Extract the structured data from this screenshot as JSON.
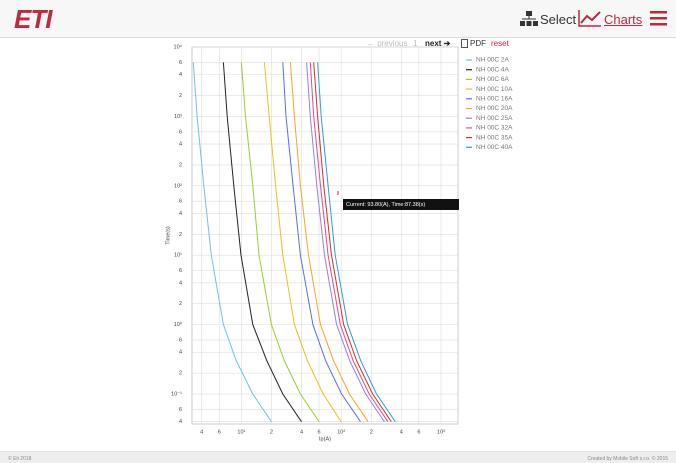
{
  "header": {
    "logo": "ETI",
    "nav": [
      "Select",
      "Charts"
    ]
  },
  "toolbar": {
    "previous": "← previous",
    "page": "1",
    "next": "next ➔",
    "pdf": "PDF",
    "reset": "reset"
  },
  "chart_data": {
    "type": "line",
    "xlabel": "Ip(A)",
    "ylabel": "Time(s)",
    "xlog": true,
    "ylog": true,
    "grid": true,
    "xlim": [
      3.2,
      1480
    ],
    "ylim": [
      0.037,
      10000
    ],
    "xticks": [
      4,
      6,
      {
        "value": 10,
        "label": "10¹"
      },
      {
        "value": 20,
        "label": "2"
      },
      {
        "value": 40,
        "label": "4"
      },
      {
        "value": 60,
        "label": "6"
      },
      {
        "value": 100,
        "label": "10²"
      },
      {
        "value": 200,
        "label": "2"
      },
      {
        "value": 400,
        "label": "4"
      },
      {
        "value": 600,
        "label": "6"
      },
      {
        "value": 1000,
        "label": "10³"
      }
    ],
    "yticks": [
      {
        "value": 10000,
        "label": "10⁴"
      },
      {
        "value": 6000,
        "label": "6"
      },
      {
        "value": 4000,
        "label": "4"
      },
      {
        "value": 2000,
        "label": "2"
      },
      {
        "value": 1000,
        "label": "10³"
      },
      {
        "value": 600,
        "label": "6"
      },
      {
        "value": 400,
        "label": "4"
      },
      {
        "value": 200,
        "label": "2"
      },
      {
        "value": 100,
        "label": "10²"
      },
      {
        "value": 60,
        "label": "6"
      },
      {
        "value": 40,
        "label": "4"
      },
      {
        "value": 20,
        "label": "2"
      },
      {
        "value": 10,
        "label": "10¹"
      },
      6,
      4,
      2,
      {
        "value": 1,
        "label": "10⁰"
      },
      {
        "value": 0.6,
        "label": "6"
      },
      {
        "value": 0.4,
        "label": "4"
      },
      {
        "value": 0.2,
        "label": "2"
      },
      {
        "value": 0.1,
        "label": "10⁻¹"
      },
      {
        "value": 0.06,
        "label": "6"
      },
      {
        "value": 0.04,
        "label": "4"
      }
    ],
    "series": [
      {
        "name": "NH 00C 2A",
        "color": "#6ec1e4",
        "x": [
          3.3,
          3.6,
          4.2,
          5,
          6.6,
          8.9,
          13,
          20
        ],
        "values": [
          6000,
          1000,
          100,
          10,
          1,
          0.3,
          0.1,
          0.04
        ]
      },
      {
        "name": "NH 00C 4A",
        "color": "#222222",
        "x": [
          6.6,
          7.2,
          8.4,
          9.9,
          13,
          18,
          26,
          40
        ],
        "values": [
          6000,
          1000,
          100,
          10,
          1,
          0.3,
          0.1,
          0.04
        ]
      },
      {
        "name": "NH 00C 6A",
        "color": "#9acd32",
        "x": [
          10,
          11,
          13,
          15,
          20,
          27,
          39,
          60
        ],
        "values": [
          6000,
          1000,
          100,
          10,
          1,
          0.3,
          0.1,
          0.04
        ]
      },
      {
        "name": "NH 00C 10A",
        "color": "#e8c21a",
        "x": [
          17,
          19,
          22,
          26,
          34,
          46,
          66,
          100
        ],
        "values": [
          6000,
          1000,
          100,
          10,
          1,
          0.3,
          0.1,
          0.04
        ]
      },
      {
        "name": "NH 00C 16A",
        "color": "#5b6ee1",
        "x": [
          26,
          28,
          33,
          39,
          52,
          70,
          101,
          156
        ],
        "values": [
          6000,
          1000,
          100,
          10,
          1,
          0.3,
          0.1,
          0.04
        ]
      },
      {
        "name": "NH 00C 20A",
        "color": "#f5a623",
        "x": [
          31,
          34,
          39,
          47,
          62,
          84,
          121,
          186
        ],
        "values": [
          6000,
          1000,
          100,
          10,
          1,
          0.3,
          0.1,
          0.04
        ]
      },
      {
        "name": "NH 00C 25A",
        "color": "#9b7fd4",
        "x": [
          45,
          49,
          57,
          68,
          90,
          122,
          176,
          270
        ],
        "values": [
          6000,
          1000,
          100,
          10,
          1,
          0.3,
          0.1,
          0.04
        ]
      },
      {
        "name": "NH 00C 32A",
        "color": "#e8488f",
        "x": [
          49,
          53,
          62,
          74,
          98,
          132,
          191,
          294
        ],
        "values": [
          6000,
          1000,
          100,
          10,
          1,
          0.3,
          0.1,
          0.04
        ]
      },
      {
        "name": "NH 00C 35A",
        "color": "#c0392b",
        "x": [
          53,
          58,
          67,
          80,
          106,
          143,
          207,
          318
        ],
        "values": [
          6000,
          1000,
          100,
          10,
          1,
          0.3,
          0.1,
          0.04
        ]
      },
      {
        "name": "NH 00C 40A",
        "color": "#2e9fc7",
        "x": [
          58,
          63,
          74,
          87,
          116,
          157,
          226,
          348
        ],
        "values": [
          6000,
          1000,
          100,
          10,
          1,
          0.3,
          0.1,
          0.04
        ]
      }
    ],
    "annotation": "Current: 93.80(A), Time:87.38(s)"
  },
  "footer": {
    "left": "© Eti 2018",
    "right": "Created by Mobile Soft s.r.o. © 2015"
  }
}
